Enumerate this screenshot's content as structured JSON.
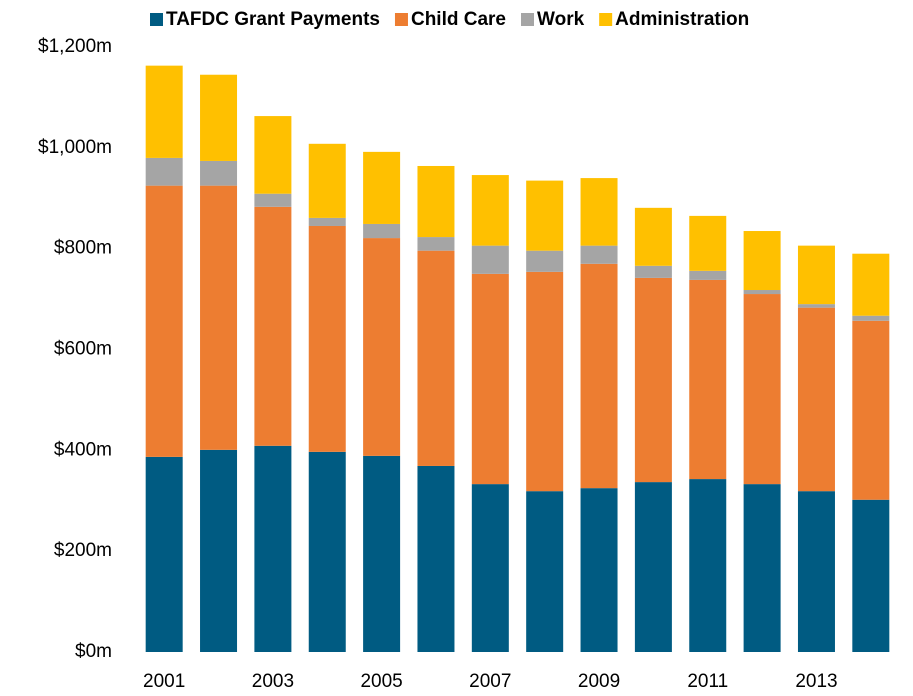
{
  "chart_data": {
    "type": "stacked_bar",
    "categories": [
      "2001",
      null,
      "2003",
      null,
      "2005",
      null,
      "2007",
      null,
      "2009",
      null,
      "2011",
      null,
      "2013",
      null
    ],
    "series": [
      {
        "name": "TAFDC Grant Payments",
        "color": "#005b82",
        "values": [
          387,
          401,
          409,
          397,
          389,
          369,
          333,
          319,
          325,
          337,
          343,
          333,
          319,
          302
        ]
      },
      {
        "name": "Child Care",
        "color": "#ed7d31",
        "values": [
          538,
          524,
          474,
          448,
          432,
          427,
          417,
          435,
          445,
          405,
          395,
          377,
          364,
          355
        ]
      },
      {
        "name": "Work",
        "color": "#a5a5a5",
        "values": [
          55,
          49,
          26,
          16,
          28,
          27,
          56,
          42,
          36,
          24,
          18,
          8,
          7,
          10
        ]
      },
      {
        "name": "Administration",
        "color": "#ffc000",
        "values": [
          183,
          171,
          154,
          147,
          143,
          141,
          140,
          139,
          134,
          115,
          109,
          117,
          116,
          123
        ]
      }
    ],
    "ylim": [
      0,
      1200
    ],
    "yticks": [
      {
        "value": 0,
        "label": "$0m"
      },
      {
        "value": 200,
        "label": "$200m"
      },
      {
        "value": 400,
        "label": "$400m"
      },
      {
        "value": 600,
        "label": "$600m"
      },
      {
        "value": 800,
        "label": "$800m"
      },
      {
        "value": 1000,
        "label": "$1,000m"
      },
      {
        "value": 1200,
        "label": "$1,200m"
      }
    ],
    "grid": false,
    "legend": "top"
  }
}
